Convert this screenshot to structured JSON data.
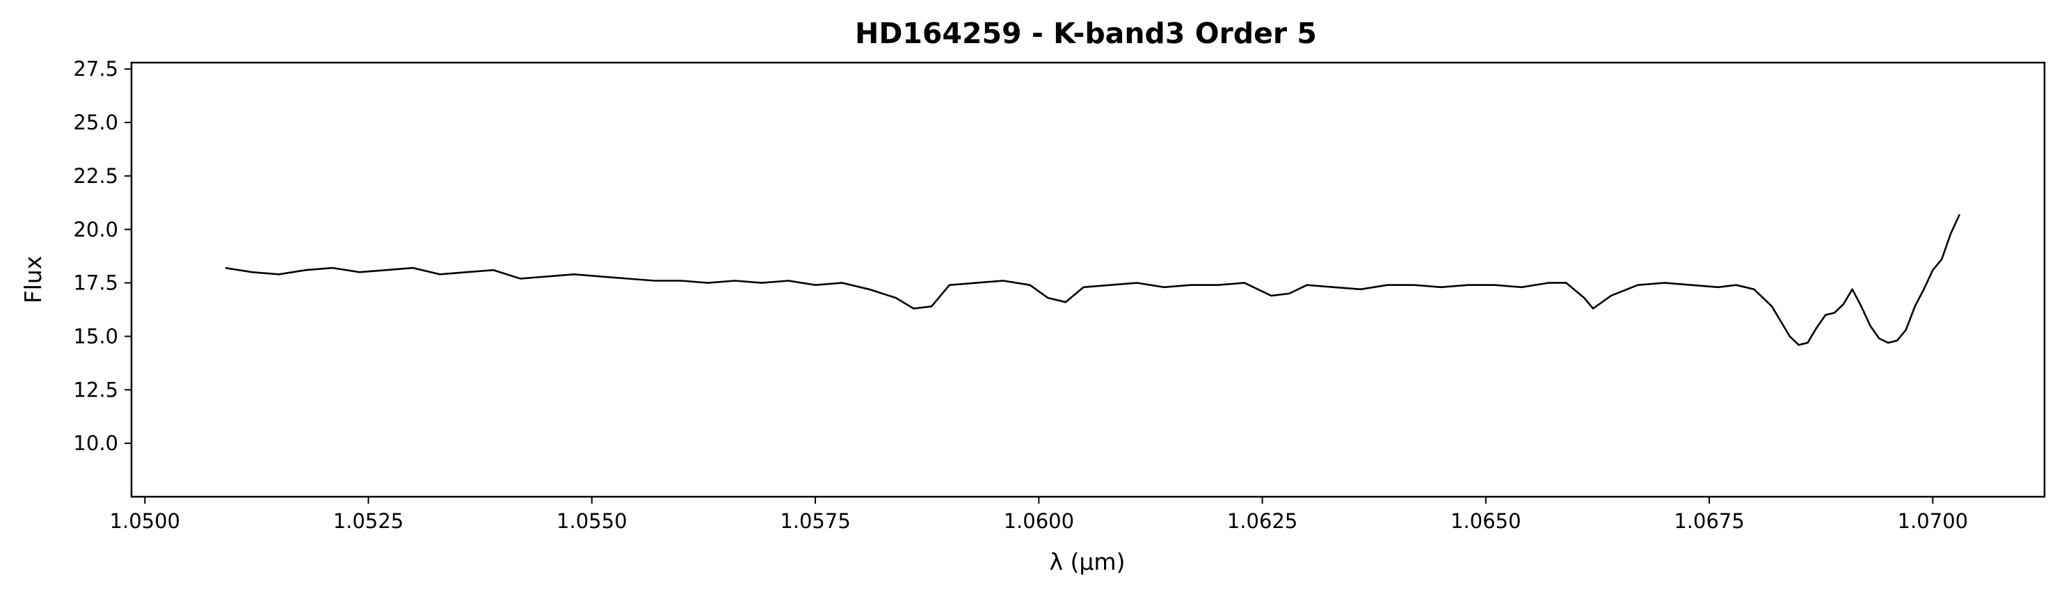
{
  "chart_data": {
    "type": "line",
    "title": "HD164259 - K-band3 Order 5",
    "xlabel": "λ (μm)",
    "ylabel": "Flux",
    "xlim": [
      1.04985,
      1.07125
    ],
    "ylim": [
      7.5,
      27.8
    ],
    "x_ticks": [
      1.05,
      1.0525,
      1.055,
      1.0575,
      1.06,
      1.0625,
      1.065,
      1.0675,
      1.07
    ],
    "x_tick_labels": [
      "1.0500",
      "1.0525",
      "1.0550",
      "1.0575",
      "1.0600",
      "1.0625",
      "1.0650",
      "1.0675",
      "1.0700"
    ],
    "y_ticks": [
      10.0,
      12.5,
      15.0,
      17.5,
      20.0,
      22.5,
      25.0,
      27.5
    ],
    "y_tick_labels": [
      "10.0",
      "12.5",
      "15.0",
      "17.5",
      "20.0",
      "22.5",
      "25.0",
      "27.5"
    ],
    "grid": false,
    "line_color": "#000000",
    "series": [
      {
        "x": [
          1.0509,
          1.0512,
          1.0515,
          1.0518,
          1.0521,
          1.0524,
          1.0527,
          1.053,
          1.0533,
          1.0536,
          1.0539,
          1.0542,
          1.0545,
          1.0548,
          1.0551,
          1.0554,
          1.0557,
          1.056,
          1.0563,
          1.0566,
          1.0569,
          1.0572,
          1.0575,
          1.0578,
          1.0581,
          1.0584,
          1.0586,
          1.0588,
          1.059,
          1.0593,
          1.0596,
          1.0599,
          1.0601,
          1.0603,
          1.0605,
          1.0608,
          1.0611,
          1.0614,
          1.0617,
          1.062,
          1.0623,
          1.0626,
          1.0628,
          1.063,
          1.0633,
          1.0636,
          1.0639,
          1.0642,
          1.0645,
          1.0648,
          1.0651,
          1.0654,
          1.0657,
          1.0659,
          1.0661,
          1.0662,
          1.0664,
          1.0667,
          1.067,
          1.0673,
          1.0676,
          1.0678,
          1.068,
          1.0682,
          1.0683,
          1.0684,
          1.0685,
          1.0686,
          1.0687,
          1.0688,
          1.0689,
          1.069,
          1.0691,
          1.0692,
          1.0693,
          1.0694,
          1.0695,
          1.0696,
          1.0697,
          1.0698,
          1.0699,
          1.07,
          1.0701,
          1.0702,
          1.0703
        ],
        "y": [
          18.2,
          18.0,
          17.9,
          18.1,
          18.2,
          18.0,
          18.1,
          18.2,
          17.9,
          18.0,
          18.1,
          17.7,
          17.8,
          17.9,
          17.8,
          17.7,
          17.6,
          17.6,
          17.5,
          17.6,
          17.5,
          17.6,
          17.4,
          17.5,
          17.2,
          16.8,
          16.3,
          16.4,
          17.4,
          17.5,
          17.6,
          17.4,
          16.8,
          16.6,
          17.3,
          17.4,
          17.5,
          17.3,
          17.4,
          17.4,
          17.5,
          16.9,
          17.0,
          17.4,
          17.3,
          17.2,
          17.4,
          17.4,
          17.3,
          17.4,
          17.4,
          17.3,
          17.5,
          17.5,
          16.8,
          16.3,
          16.9,
          17.4,
          17.5,
          17.4,
          17.3,
          17.4,
          17.2,
          16.4,
          15.7,
          15.0,
          14.6,
          14.7,
          15.4,
          16.0,
          16.1,
          16.5,
          17.2,
          16.4,
          15.5,
          14.9,
          14.7,
          14.8,
          15.3,
          16.4,
          17.2,
          18.1,
          18.6,
          19.8,
          20.7
        ]
      }
    ]
  }
}
